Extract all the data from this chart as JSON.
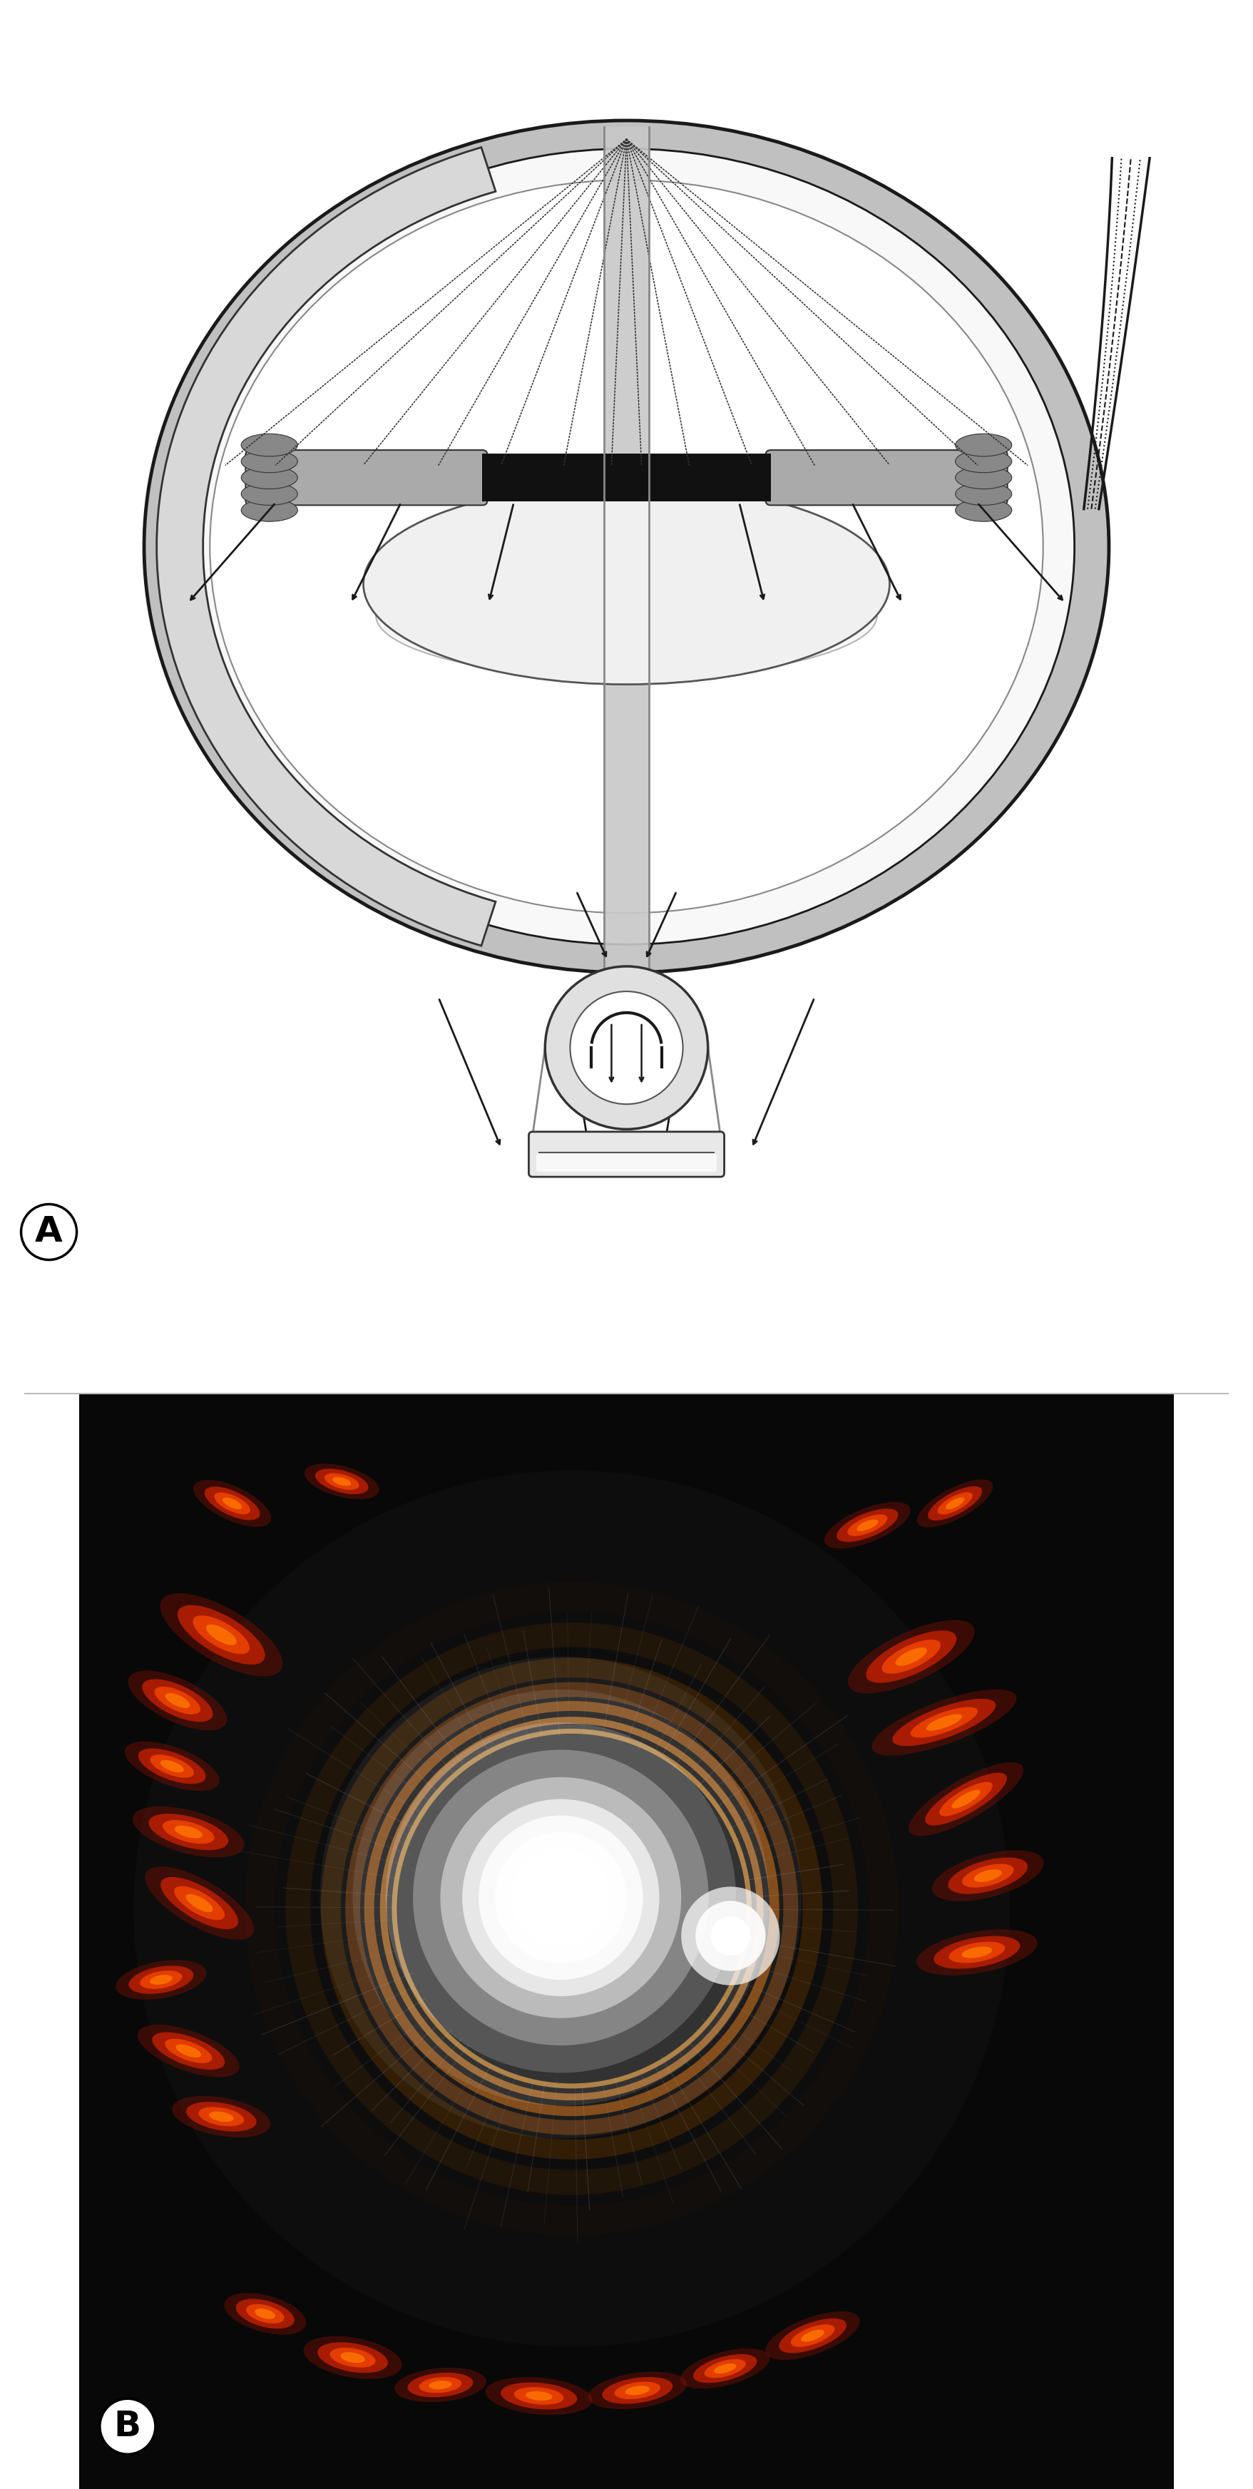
{
  "fig_width": 17.57,
  "fig_height": 34.9,
  "panel_A_label": "A",
  "panel_B_label": "B",
  "bg_white": "#ffffff",
  "bg_black": "#050505",
  "sclera_gray": "#c8c8c8",
  "sclera_inner": "#f0f0f0",
  "iris_gray": "#aaaaaa",
  "lens_color": "#e8e8e8",
  "beam_gray": "#b0b0b0",
  "line_dark": "#1a1a1a",
  "lamp_ring_color": "#d0d0d0"
}
